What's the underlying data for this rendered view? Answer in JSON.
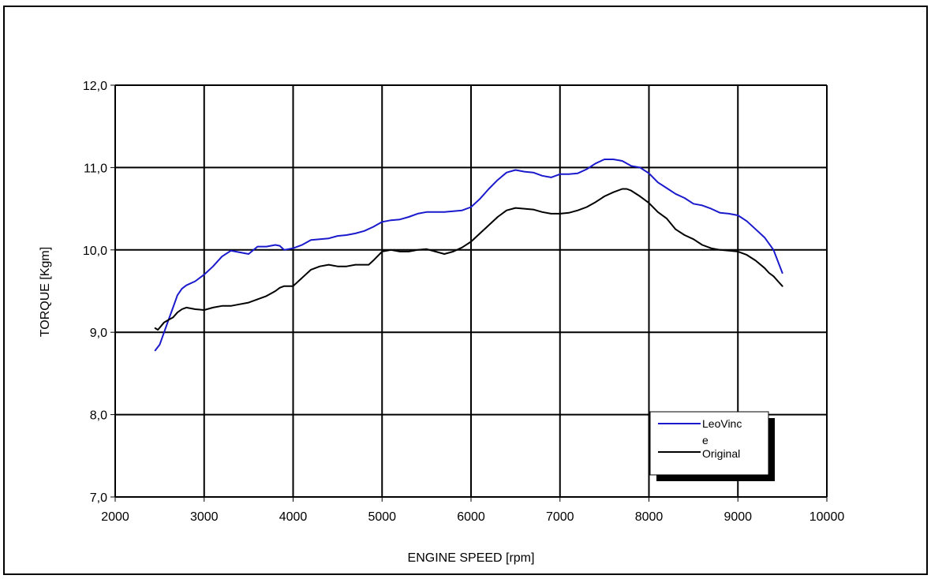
{
  "chart_data": {
    "type": "line",
    "title": "",
    "xlabel": "ENGINE SPEED [rpm]",
    "ylabel": "TORQUE [Kgm]",
    "xlim": [
      2000,
      10000
    ],
    "ylim": [
      7.0,
      12.0
    ],
    "grid": true,
    "legend_position": "bottom-right",
    "x_tick_labels": [
      "2000",
      "3000",
      "4000",
      "5000",
      "6000",
      "7000",
      "8000",
      "9000",
      "10000"
    ],
    "y_tick_labels": [
      "7,0",
      "8,0",
      "9,0",
      "10,0",
      "11,0",
      "12,0"
    ],
    "series": [
      {
        "name": "LeoVince",
        "legend_label_lines": [
          "LeoVinc",
          "e"
        ],
        "color": "#1a1acc",
        "x": [
          2450,
          2500,
          2550,
          2600,
          2650,
          2700,
          2750,
          2800,
          2900,
          3000,
          3100,
          3200,
          3300,
          3400,
          3500,
          3600,
          3700,
          3800,
          3850,
          3900,
          4000,
          4100,
          4200,
          4300,
          4400,
          4500,
          4600,
          4700,
          4800,
          4900,
          5000,
          5100,
          5200,
          5300,
          5400,
          5500,
          5600,
          5700,
          5800,
          5900,
          6000,
          6100,
          6200,
          6300,
          6400,
          6500,
          6600,
          6700,
          6800,
          6900,
          7000,
          7100,
          7200,
          7300,
          7400,
          7500,
          7600,
          7700,
          7800,
          7900,
          8000,
          8100,
          8200,
          8300,
          8400,
          8500,
          8600,
          8700,
          8800,
          8900,
          9000,
          9100,
          9200,
          9300,
          9400,
          9500
        ],
        "y": [
          8.78,
          8.85,
          9.0,
          9.15,
          9.3,
          9.45,
          9.53,
          9.57,
          9.62,
          9.7,
          9.8,
          9.92,
          9.99,
          9.97,
          9.95,
          10.04,
          10.04,
          10.06,
          10.05,
          10.0,
          10.02,
          10.06,
          10.12,
          10.13,
          10.14,
          10.17,
          10.18,
          10.2,
          10.23,
          10.28,
          10.34,
          10.36,
          10.37,
          10.4,
          10.44,
          10.46,
          10.46,
          10.46,
          10.47,
          10.48,
          10.52,
          10.62,
          10.74,
          10.85,
          10.94,
          10.97,
          10.95,
          10.94,
          10.9,
          10.88,
          10.92,
          10.92,
          10.93,
          10.98,
          11.05,
          11.1,
          11.1,
          11.08,
          11.02,
          11.0,
          10.93,
          10.82,
          10.75,
          10.68,
          10.63,
          10.56,
          10.54,
          10.5,
          10.45,
          10.44,
          10.42,
          10.35,
          10.25,
          10.15,
          10.0,
          9.72
        ]
      },
      {
        "name": "Original",
        "color": "#000000",
        "x": [
          2450,
          2480,
          2520,
          2550,
          2600,
          2650,
          2700,
          2750,
          2800,
          2900,
          3000,
          3100,
          3200,
          3300,
          3400,
          3500,
          3600,
          3700,
          3800,
          3850,
          3900,
          4000,
          4100,
          4200,
          4300,
          4400,
          4500,
          4600,
          4700,
          4800,
          4850,
          4900,
          5000,
          5100,
          5200,
          5300,
          5400,
          5500,
          5600,
          5700,
          5800,
          5900,
          6000,
          6100,
          6200,
          6300,
          6400,
          6500,
          6600,
          6700,
          6800,
          6900,
          7000,
          7100,
          7200,
          7300,
          7400,
          7500,
          7600,
          7700,
          7750,
          7800,
          7900,
          8000,
          8100,
          8200,
          8300,
          8400,
          8500,
          8600,
          8700,
          8800,
          8900,
          9000,
          9100,
          9200,
          9300,
          9350,
          9400,
          9450,
          9500
        ],
        "y": [
          9.05,
          9.03,
          9.08,
          9.12,
          9.15,
          9.18,
          9.24,
          9.28,
          9.3,
          9.28,
          9.27,
          9.3,
          9.32,
          9.32,
          9.34,
          9.36,
          9.4,
          9.44,
          9.5,
          9.54,
          9.56,
          9.56,
          9.66,
          9.76,
          9.8,
          9.82,
          9.8,
          9.8,
          9.82,
          9.82,
          9.82,
          9.87,
          9.98,
          10.0,
          9.98,
          9.98,
          10.0,
          10.01,
          9.98,
          9.95,
          9.98,
          10.03,
          10.1,
          10.2,
          10.3,
          10.4,
          10.48,
          10.51,
          10.5,
          10.49,
          10.46,
          10.44,
          10.44,
          10.45,
          10.48,
          10.52,
          10.58,
          10.65,
          10.7,
          10.74,
          10.74,
          10.72,
          10.65,
          10.57,
          10.46,
          10.38,
          10.25,
          10.18,
          10.13,
          10.06,
          10.02,
          10.0,
          9.99,
          9.98,
          9.94,
          9.87,
          9.78,
          9.72,
          9.68,
          9.62,
          9.56
        ]
      }
    ]
  },
  "colors": {
    "grid": "#000000",
    "background": "#ffffff",
    "legend_shadow": "#000000"
  }
}
